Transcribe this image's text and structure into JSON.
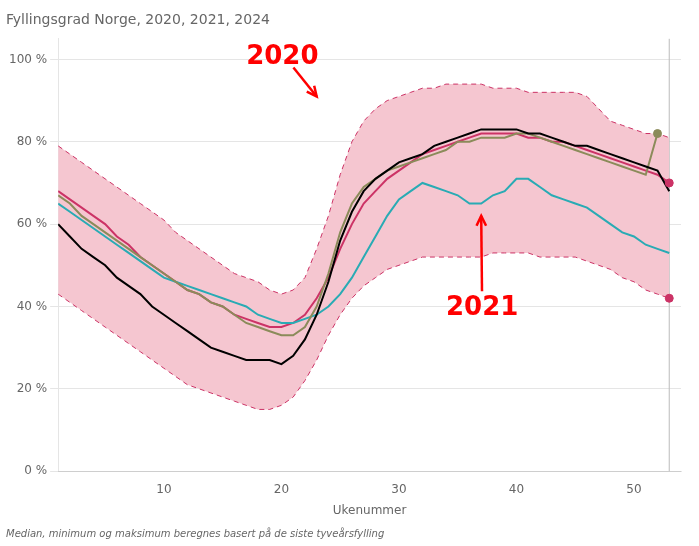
{
  "chart_data": {
    "type": "line",
    "title": "Fyllingsgrad Norge, 2020, 2021, 2024",
    "xlabel": "Ukenummer",
    "footnote": "Median, minimum og maksimum beregnes basert på de siste tyveårsfylling",
    "x": [
      1,
      2,
      3,
      4,
      5,
      6,
      7,
      8,
      9,
      10,
      11,
      12,
      13,
      14,
      15,
      16,
      17,
      18,
      19,
      20,
      21,
      22,
      23,
      24,
      25,
      26,
      27,
      28,
      29,
      30,
      31,
      32,
      33,
      34,
      35,
      36,
      37,
      38,
      39,
      40,
      41,
      42,
      43,
      44,
      45,
      46,
      47,
      48,
      49,
      50,
      51,
      52,
      53
    ],
    "xlim": [
      1,
      54
    ],
    "xticks": [
      10,
      20,
      30,
      40,
      50
    ],
    "ylim": [
      0,
      105
    ],
    "yticks": [
      {
        "value": 0,
        "label": "0 %"
      },
      {
        "value": 20,
        "label": "20 %"
      },
      {
        "value": 40,
        "label": "40 %"
      },
      {
        "value": 60,
        "label": "60 %"
      },
      {
        "value": 80,
        "label": "80 %"
      },
      {
        "value": 100,
        "label": "100 %"
      }
    ],
    "grid": "y",
    "series": [
      {
        "type": "band",
        "color": "#f5c6d0",
        "lower": [
          43,
          41,
          39,
          37,
          35,
          33,
          31,
          29,
          27,
          25,
          23,
          21,
          20,
          19,
          18,
          17,
          16,
          15,
          15,
          16,
          18,
          22,
          27,
          33,
          38,
          42,
          45,
          47,
          49,
          50,
          51,
          52,
          52,
          52,
          52,
          52,
          52,
          53,
          53,
          53,
          53,
          52,
          52,
          52,
          52,
          51,
          50,
          49,
          47,
          46,
          44,
          43,
          42
        ],
        "upper": [
          79,
          77,
          75,
          73,
          71,
          69,
          67,
          65,
          63,
          61,
          58,
          56,
          54,
          52,
          50,
          48,
          47,
          46,
          44,
          43,
          44,
          47,
          54,
          62,
          72,
          80,
          85,
          88,
          90,
          91,
          92,
          93,
          93,
          94,
          94,
          94,
          94,
          93,
          93,
          93,
          92,
          92,
          92,
          92,
          92,
          91,
          88,
          85,
          84,
          83,
          82,
          82,
          81
        ]
      },
      {
        "color": "#cc3366",
        "line_style": "dashed",
        "values": [
          79,
          77,
          75,
          73,
          71,
          69,
          67,
          65,
          63,
          61,
          58,
          56,
          54,
          52,
          50,
          48,
          47,
          46,
          44,
          43,
          44,
          47,
          54,
          62,
          72,
          80,
          85,
          88,
          90,
          91,
          92,
          93,
          93,
          94,
          94,
          94,
          94,
          93,
          93,
          93,
          92,
          92,
          92,
          92,
          92,
          91,
          88,
          85,
          84,
          83,
          82,
          82,
          81
        ]
      },
      {
        "color": "#cc3366",
        "line_style": "dashed",
        "values": [
          43,
          41,
          39,
          37,
          35,
          33,
          31,
          29,
          27,
          25,
          23,
          21,
          20,
          19,
          18,
          17,
          16,
          15,
          15,
          16,
          18,
          22,
          27,
          33,
          38,
          42,
          45,
          47,
          49,
          50,
          51,
          52,
          52,
          52,
          52,
          52,
          52,
          53,
          53,
          53,
          53,
          52,
          52,
          52,
          52,
          51,
          50,
          49,
          47,
          46,
          44,
          43,
          42
        ]
      },
      {
        "color": "#cc3366",
        "line_style": "solid",
        "values": [
          68,
          66,
          64,
          62,
          60,
          57,
          55,
          52,
          50,
          48,
          46,
          44,
          43,
          41,
          40,
          38,
          37,
          36,
          35,
          35,
          36,
          38,
          42,
          47,
          54,
          60,
          65,
          68,
          71,
          73,
          75,
          77,
          78,
          79,
          80,
          81,
          82,
          82,
          82,
          82,
          81,
          81,
          80,
          80,
          79,
          78,
          77,
          76,
          75,
          74,
          73,
          72,
          70
        ]
      },
      {
        "color": "#29abb4",
        "line_style": "solid",
        "values": [
          65,
          63,
          61,
          59,
          57,
          55,
          53,
          51,
          49,
          47,
          46,
          45,
          44,
          43,
          42,
          41,
          40,
          38,
          37,
          36,
          36,
          37,
          38,
          40,
          43,
          47,
          52,
          57,
          62,
          66,
          68,
          70,
          69,
          68,
          67,
          65,
          65,
          67,
          68,
          71,
          71,
          69,
          67,
          66,
          65,
          64,
          62,
          60,
          58,
          57,
          55,
          54,
          53
        ]
      },
      {
        "color": "#8b8b5a",
        "line_style": "solid",
        "values": [
          67,
          65,
          62,
          60,
          58,
          56,
          54,
          52,
          50,
          48,
          46,
          44,
          43,
          41,
          40,
          38,
          36,
          35,
          34,
          33,
          33,
          35,
          40,
          48,
          58,
          65,
          69,
          71,
          73,
          74,
          75,
          76,
          77,
          78,
          80,
          80,
          81,
          81,
          81,
          82,
          82,
          81,
          80,
          79,
          78,
          77,
          76,
          75,
          74,
          73,
          72,
          82,
          null
        ]
      },
      {
        "color": "#000000",
        "line_style": "solid",
        "values": [
          60,
          57,
          54,
          52,
          50,
          47,
          45,
          43,
          40,
          38,
          36,
          34,
          32,
          30,
          29,
          28,
          27,
          27,
          27,
          26,
          28,
          32,
          38,
          46,
          56,
          63,
          68,
          71,
          73,
          75,
          76,
          77,
          79,
          80,
          81,
          82,
          83,
          83,
          83,
          83,
          82,
          82,
          81,
          80,
          79,
          79,
          78,
          77,
          76,
          75,
          74,
          73,
          68
        ]
      },
      {
        "type": "scatter",
        "marker": "circle",
        "color": "#8b8b5a",
        "x": [
          52
        ],
        "values": [
          82
        ]
      },
      {
        "type": "scatter",
        "marker": "circle",
        "color": "#cc3366",
        "x": [
          53
        ],
        "values": [
          70
        ]
      },
      {
        "type": "scatter",
        "marker": "circle",
        "color": "#cc3366",
        "x": [
          53
        ],
        "values": [
          42
        ]
      }
    ],
    "vertical_lines": [
      {
        "x": 53,
        "color": "#bbbbbb"
      }
    ],
    "annotations": [
      {
        "text": "2020",
        "x": 17,
        "y": 99,
        "arrow_x": 23,
        "arrow_y": 91,
        "color": "red"
      },
      {
        "text": "2021",
        "x": 34,
        "y": 38,
        "arrow_x": 37,
        "arrow_y": 62,
        "color": "red"
      }
    ]
  }
}
